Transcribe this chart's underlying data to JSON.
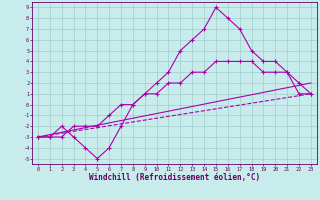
{
  "title": "",
  "xlabel": "Windchill (Refroidissement éolien,°C)",
  "xlim": [
    -0.5,
    23.5
  ],
  "ylim": [
    -5.5,
    9.5
  ],
  "xticks": [
    0,
    1,
    2,
    3,
    4,
    5,
    6,
    7,
    8,
    9,
    10,
    11,
    12,
    13,
    14,
    15,
    16,
    17,
    18,
    19,
    20,
    21,
    22,
    23
  ],
  "yticks": [
    -5,
    -4,
    -3,
    -2,
    -1,
    0,
    1,
    2,
    3,
    4,
    5,
    6,
    7,
    8,
    9
  ],
  "line_color": "#aa00aa",
  "bg_color": "#c8ecec",
  "grid_color": "#a0cccc",
  "line1_x": [
    0,
    1,
    2,
    3,
    4,
    5,
    6,
    7,
    8,
    9,
    10,
    11,
    12,
    13,
    14,
    15,
    16,
    17,
    18,
    19,
    20,
    21,
    22,
    23
  ],
  "line1_y": [
    -3,
    -3,
    -2,
    -3,
    -4,
    -5,
    -4,
    -2,
    0,
    1,
    2,
    3,
    5,
    6,
    7,
    9,
    8,
    7,
    5,
    4,
    4,
    3,
    1,
    1
  ],
  "line2_x": [
    0,
    1,
    2,
    3,
    4,
    5,
    6,
    7,
    8,
    9,
    10,
    11,
    12,
    13,
    14,
    15,
    16,
    17,
    18,
    19,
    20,
    21,
    22,
    23
  ],
  "line2_y": [
    -3,
    -3,
    -3,
    -2,
    -2,
    -2,
    -1,
    0,
    0,
    1,
    1,
    2,
    2,
    3,
    3,
    4,
    4,
    4,
    4,
    3,
    3,
    3,
    2,
    1
  ],
  "line3_x": [
    0,
    23
  ],
  "line3_y": [
    -3,
    1
  ],
  "line4_x": [
    0,
    23
  ],
  "line4_y": [
    -3,
    2
  ]
}
